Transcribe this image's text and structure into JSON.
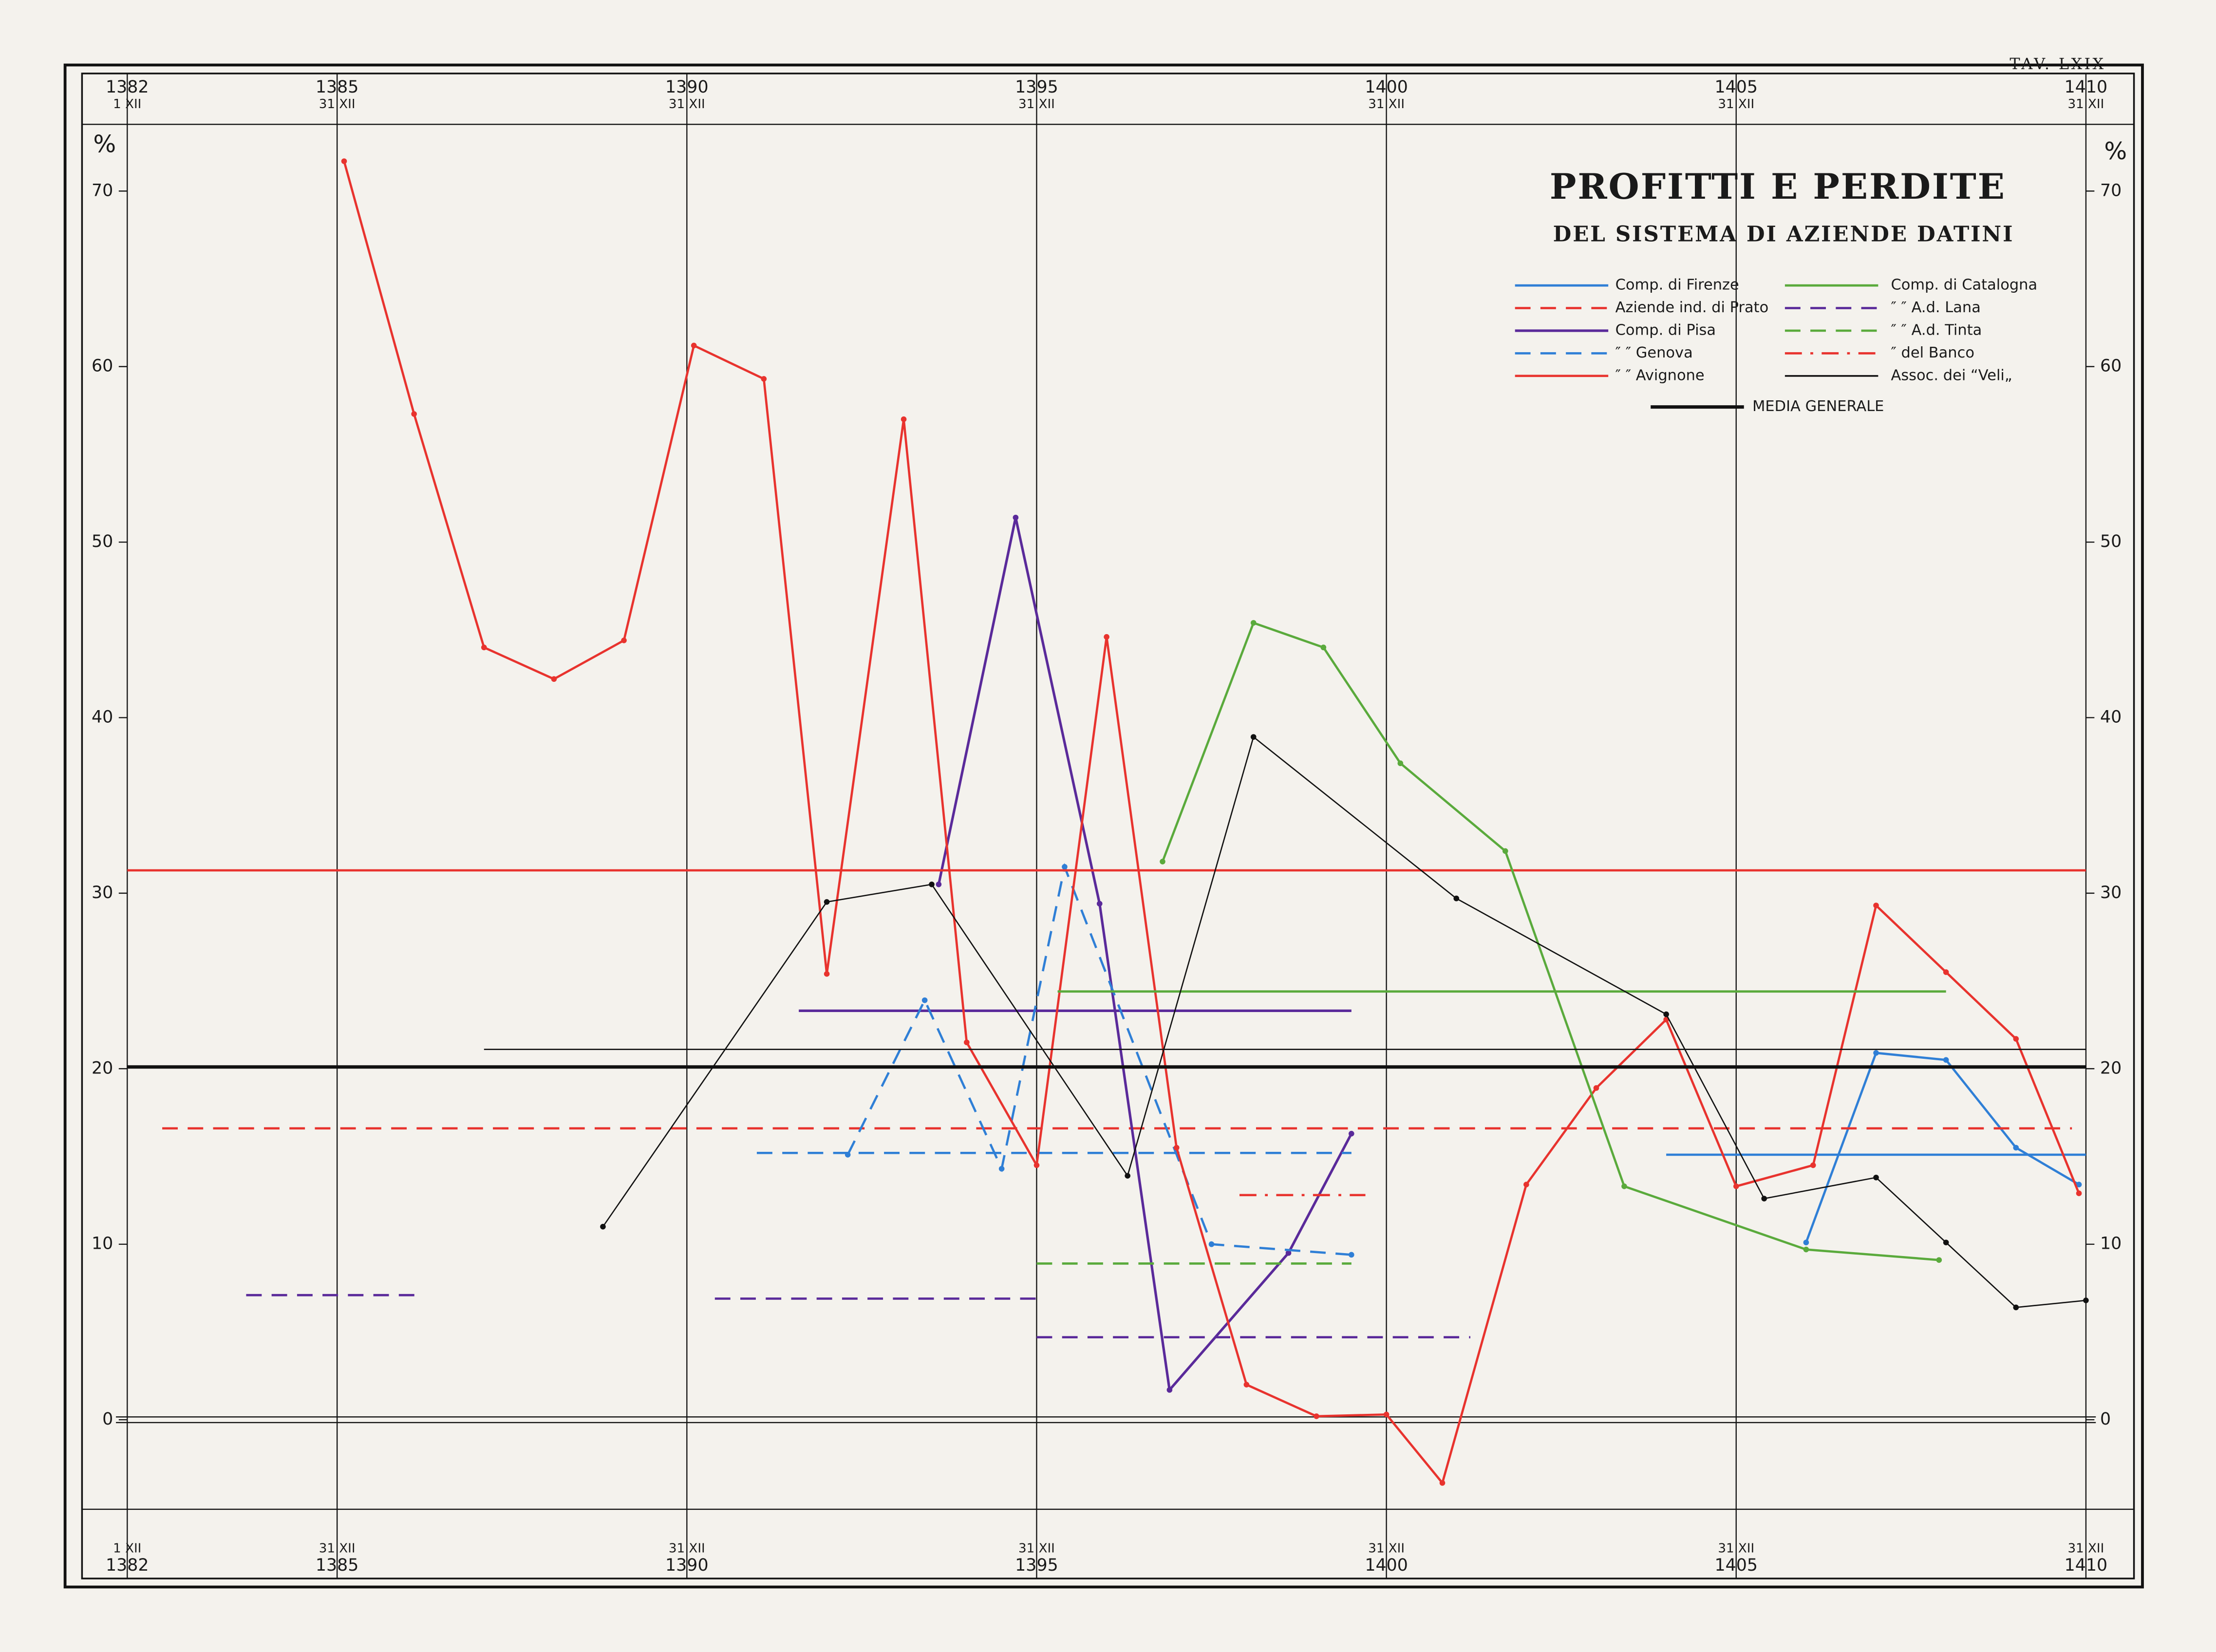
{
  "chart_data": {
    "type": "line",
    "plate": "TAV. LXIX",
    "title": "PROFITTI E PERDITE",
    "subtitle": "DEL SISTEMA DI AZIENDE DATINI",
    "y_label": "%",
    "xlim": [
      1382,
      1410
    ],
    "xticks": [
      1382,
      1385,
      1390,
      1395,
      1400,
      1405,
      1410
    ],
    "xtick_sublabels": [
      "1 XII",
      "31 XII",
      "31 XII",
      "31 XII",
      "31 XII",
      "31 XII",
      "31 XII"
    ],
    "ylim": [
      -5.1,
      73.8
    ],
    "yticks": [
      0,
      10,
      20,
      30,
      40,
      50,
      60,
      70
    ],
    "grid": true,
    "markers": true,
    "series": [
      {
        "name": "Comp. di Firenze",
        "color": "#2f7fd6",
        "dash": "solid",
        "linewidth": 1.6,
        "x": [
          1406.0,
          1407.0,
          1408.0,
          1409.0,
          1409.9
        ],
        "values": [
          10.1,
          20.9,
          20.5,
          15.5,
          13.4
        ],
        "means": [
          {
            "x": [
              1404.0,
              1410.0
            ],
            "value": 15.1
          }
        ]
      },
      {
        "name": "Aziende ind. di Prato",
        "color": "#e8332e",
        "dash": "dashed",
        "linewidth": 1.6,
        "means": [
          {
            "x": [
              1382.5,
              1409.8
            ],
            "value": 16.6
          }
        ]
      },
      {
        "name": "Comp. di Pisa",
        "color": "#5a2a9a",
        "dash": "solid",
        "linewidth": 1.8,
        "x": [
          1393.6,
          1394.7,
          1395.9,
          1396.9,
          1398.6,
          1399.5
        ],
        "values": [
          30.5,
          51.4,
          29.4,
          1.7,
          9.5,
          16.3
        ],
        "means": [
          {
            "x": [
              1391.6,
              1399.5
            ],
            "value": 23.3
          }
        ]
      },
      {
        "name": "″ ″ Genova",
        "color": "#2f7fd6",
        "dash": "dashed",
        "linewidth": 1.6,
        "x": [
          1392.3,
          1393.4,
          1394.5,
          1395.4,
          1397.5,
          1399.5
        ],
        "values": [
          15.1,
          23.9,
          14.3,
          31.5,
          10.0,
          9.4
        ],
        "means": [
          {
            "x": [
              1391.0,
              1399.5
            ],
            "value": 15.2
          }
        ]
      },
      {
        "name": "″ ″ Avignone",
        "color": "#e8332e",
        "dash": "solid",
        "linewidth": 1.6,
        "x": [
          1385.1,
          1386.1,
          1387.1,
          1388.1,
          1389.1,
          1390.1,
          1391.1,
          1392.0,
          1393.1,
          1394.0,
          1395.0,
          1396.0,
          1397.0,
          1398.0,
          1399.0,
          1400.0,
          1400.8,
          1402.0,
          1403.0,
          1404.0,
          1405.0,
          1406.1,
          1407.0,
          1408.0,
          1409.0,
          1409.9
        ],
        "values": [
          71.7,
          57.3,
          44.0,
          42.2,
          44.4,
          61.2,
          59.3,
          25.4,
          57.0,
          21.5,
          14.5,
          44.6,
          15.5,
          2.0,
          0.2,
          0.3,
          -3.6,
          13.4,
          18.9,
          22.8,
          13.3,
          14.5,
          29.3,
          25.5,
          21.7,
          12.9
        ],
        "means": [
          {
            "x": [
              1382.0,
              1410.0
            ],
            "value": 31.3
          }
        ]
      },
      {
        "name": "Comp. di Catalogna",
        "color": "#5aaa3c",
        "dash": "solid",
        "linewidth": 1.6,
        "x": [
          1396.8,
          1398.1,
          1399.1,
          1400.2,
          1401.7,
          1403.4,
          1406.0,
          1407.9
        ],
        "values": [
          31.8,
          45.4,
          44.0,
          37.4,
          32.4,
          13.3,
          9.7,
          9.1
        ],
        "means": [
          {
            "x": [
              1395.3,
              1408.0
            ],
            "value": 24.4
          }
        ]
      },
      {
        "name": "″ ″ A.d. Lana",
        "color": "#5a2a9a",
        "dash": "dashed",
        "linewidth": 1.6,
        "means": [
          {
            "x": [
              1383.7,
              1386.2
            ],
            "value": 7.1
          },
          {
            "x": [
              1390.4,
              1395.0
            ],
            "value": 6.9
          },
          {
            "x": [
              1395.0,
              1401.2
            ],
            "value": 4.7
          }
        ]
      },
      {
        "name": "″ ″ A.d. Tinta",
        "color": "#5aaa3c",
        "dash": "dashed",
        "linewidth": 1.6,
        "means": [
          {
            "x": [
              1395.0,
              1399.5
            ],
            "value": 8.9
          }
        ]
      },
      {
        "name": "″ del Banco",
        "color": "#e8332e",
        "dash": "dashdot",
        "linewidth": 1.6,
        "means": [
          {
            "x": [
              1397.9,
              1399.7
            ],
            "value": 12.8
          }
        ]
      },
      {
        "name": "Assoc. dei “Veli„",
        "color": "#111111",
        "dash": "solid",
        "linewidth": 0.9,
        "x": [
          1388.8,
          1392.0,
          1393.5,
          1396.3,
          1398.1,
          1401.0,
          1404.0,
          1405.4,
          1407.0,
          1408.0,
          1409.0,
          1410.0
        ],
        "values": [
          11.0,
          29.5,
          30.5,
          13.9,
          38.9,
          29.7,
          23.1,
          12.6,
          13.8,
          10.1,
          6.4,
          6.8
        ],
        "means": [
          {
            "x": [
              1387.1,
              1410.0
            ],
            "value": 21.1
          }
        ]
      },
      {
        "name": "MEDIA GENERALE",
        "color": "#111111",
        "dash": "solid",
        "linewidth": 2.4,
        "means": [
          {
            "x": [
              1382.0,
              1410.0
            ],
            "value": 20.1
          }
        ]
      }
    ]
  }
}
